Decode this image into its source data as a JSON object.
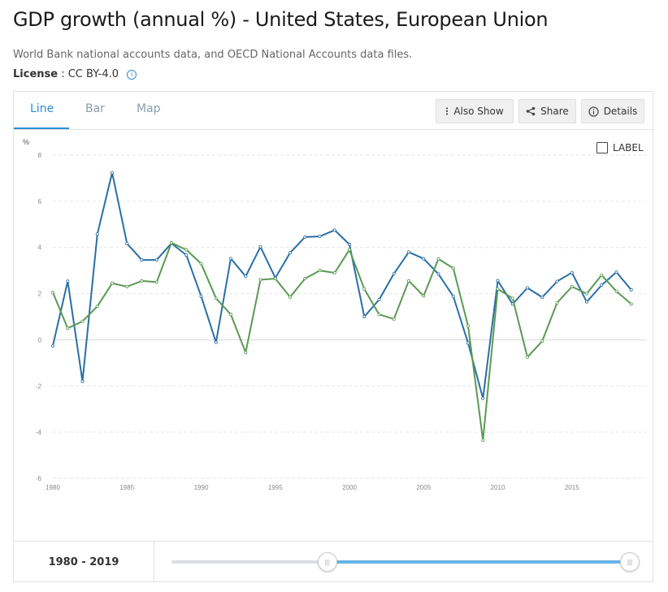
{
  "header": {
    "title": "GDP growth (annual %) - United States, European Union",
    "source": "World Bank national accounts data, and OECD National Accounts data files.",
    "license_label": "License",
    "license_value": ": CC BY-4.0"
  },
  "tabs": [
    {
      "label": "Line",
      "active": true
    },
    {
      "label": "Bar",
      "active": false
    },
    {
      "label": "Map",
      "active": false
    }
  ],
  "toolbar": {
    "also_show": "Also Show",
    "share": "Share",
    "details": "Details",
    "label_toggle": "LABEL"
  },
  "range": {
    "start": "1980",
    "separator": "-",
    "end": "2019",
    "min_year": 1960,
    "max_year": 2019
  },
  "colors": {
    "us": "#2a6fa6",
    "eu": "#5a9a52",
    "accent": "#2a8fd6"
  },
  "chart_data": {
    "type": "line",
    "ylabel": "%",
    "ylim": [
      -6,
      8
    ],
    "yticks": [
      8,
      6,
      4,
      2,
      0,
      -2,
      -4,
      -6
    ],
    "xlim": [
      1980,
      2020
    ],
    "xticks": [
      1980,
      1985,
      1990,
      1995,
      2000,
      2005,
      2010,
      2015
    ],
    "x": [
      1980,
      1981,
      1982,
      1983,
      1984,
      1985,
      1986,
      1987,
      1988,
      1989,
      1990,
      1991,
      1992,
      1993,
      1994,
      1995,
      1996,
      1997,
      1998,
      1999,
      2000,
      2001,
      2002,
      2003,
      2004,
      2005,
      2006,
      2007,
      2008,
      2009,
      2010,
      2011,
      2012,
      2013,
      2014,
      2015,
      2016,
      2017,
      2018,
      2019
    ],
    "series": [
      {
        "key": "us",
        "values": [
          -0.26,
          2.54,
          -1.8,
          4.58,
          7.24,
          4.17,
          3.46,
          3.46,
          4.18,
          3.67,
          1.89,
          -0.11,
          3.52,
          2.75,
          4.03,
          2.68,
          3.77,
          4.45,
          4.48,
          4.75,
          4.13,
          1.0,
          1.74,
          2.86,
          3.8,
          3.51,
          2.85,
          1.88,
          -0.14,
          -2.54,
          2.56,
          1.55,
          2.25,
          1.84,
          2.53,
          2.91,
          1.64,
          2.37,
          2.93,
          2.16
        ]
      },
      {
        "key": "eu",
        "values": [
          2.05,
          0.5,
          0.8,
          1.45,
          2.45,
          2.3,
          2.55,
          2.5,
          4.2,
          3.9,
          3.3,
          1.8,
          1.1,
          -0.55,
          2.6,
          2.65,
          1.85,
          2.65,
          3.0,
          2.9,
          3.9,
          2.2,
          1.1,
          0.9,
          2.55,
          1.9,
          3.5,
          3.1,
          0.6,
          -4.35,
          2.2,
          1.8,
          -0.75,
          -0.05,
          1.6,
          2.3,
          2.0,
          2.8,
          2.1,
          1.55
        ]
      }
    ]
  }
}
